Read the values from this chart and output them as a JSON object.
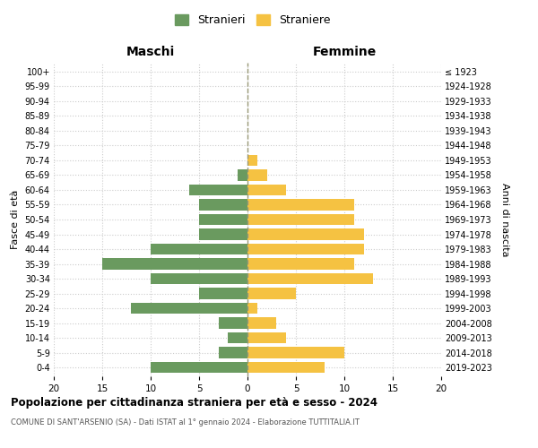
{
  "age_groups": [
    "0-4",
    "5-9",
    "10-14",
    "15-19",
    "20-24",
    "25-29",
    "30-34",
    "35-39",
    "40-44",
    "45-49",
    "50-54",
    "55-59",
    "60-64",
    "65-69",
    "70-74",
    "75-79",
    "80-84",
    "85-89",
    "90-94",
    "95-99",
    "100+"
  ],
  "birth_years": [
    "2019-2023",
    "2014-2018",
    "2009-2013",
    "2004-2008",
    "1999-2003",
    "1994-1998",
    "1989-1993",
    "1984-1988",
    "1979-1983",
    "1974-1978",
    "1969-1973",
    "1964-1968",
    "1959-1963",
    "1954-1958",
    "1949-1953",
    "1944-1948",
    "1939-1943",
    "1934-1938",
    "1929-1933",
    "1924-1928",
    "≤ 1923"
  ],
  "maschi": [
    10,
    3,
    2,
    3,
    12,
    5,
    10,
    15,
    10,
    5,
    5,
    5,
    6,
    1,
    0,
    0,
    0,
    0,
    0,
    0,
    0
  ],
  "femmine": [
    8,
    10,
    4,
    3,
    1,
    5,
    13,
    11,
    12,
    12,
    11,
    11,
    4,
    2,
    1,
    0,
    0,
    0,
    0,
    0,
    0
  ],
  "color_maschi": "#6a9a5f",
  "color_femmine": "#f5c242",
  "title": "Popolazione per cittadinanza straniera per età e sesso - 2024",
  "subtitle": "COMUNE DI SANT'ARSENIO (SA) - Dati ISTAT al 1° gennaio 2024 - Elaborazione TUTTITALIA.IT",
  "xlabel_left": "Maschi",
  "xlabel_right": "Femmine",
  "ylabel_left": "Fasce di età",
  "ylabel_right": "Anni di nascita",
  "legend_maschi": "Stranieri",
  "legend_femmine": "Straniere",
  "xlim": 20,
  "background_color": "#ffffff",
  "grid_color": "#cccccc",
  "center_line_color": "#999977",
  "bar_height": 0.75
}
